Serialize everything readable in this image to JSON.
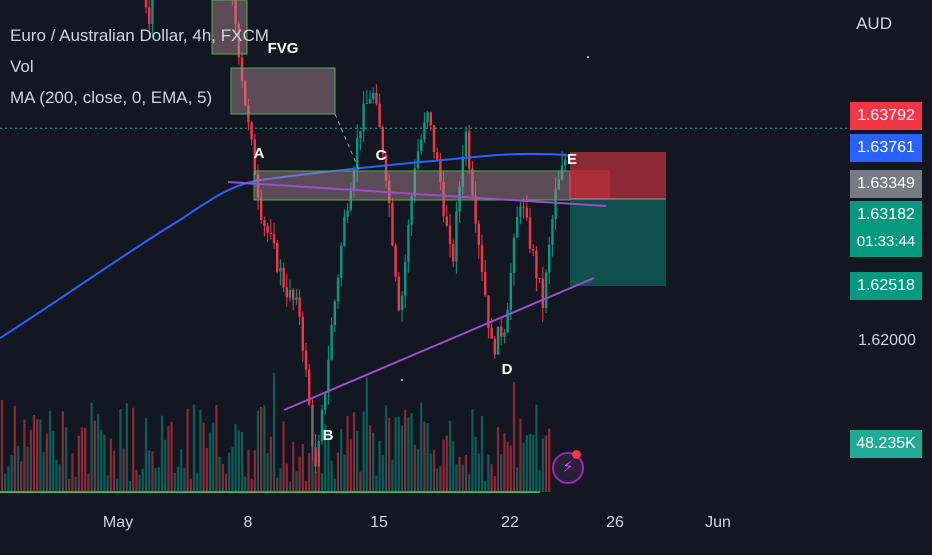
{
  "header": {
    "title": "Euro / Australian Dollar, 4h, FXCM",
    "indicator_vol": "Vol",
    "indicator_ma": "MA (200, close, 0, EMA, 5)",
    "currency": "AUD"
  },
  "price_axis": {
    "ticks": [
      "1.62000"
    ],
    "tags": [
      {
        "label": "1.63792",
        "color": "#f23645"
      },
      {
        "label": "1.63761",
        "color": "#2962ff"
      },
      {
        "label": "1.63349",
        "color": "#787b86"
      },
      {
        "label": "1.63182",
        "sub": "01:33:44",
        "color": "#089981"
      },
      {
        "label": "1.62518",
        "color": "#089981"
      },
      {
        "label": "48.235K",
        "color": "#22ab94"
      }
    ]
  },
  "time_axis": {
    "ticks": [
      "May",
      "8",
      "15",
      "22",
      "26",
      "Jun"
    ]
  },
  "annotations": {
    "fvg": "FVG",
    "points": [
      "A",
      "B",
      "C",
      "D",
      "E"
    ]
  },
  "colors": {
    "background": "#131722",
    "up": "#089981",
    "down": "#f23645",
    "ma": "#2962ff",
    "trendline": "#9c4dcc",
    "zone_border": "#4caf50"
  },
  "chart_data": {
    "type": "candlestick",
    "symbol": "EURAUD",
    "interval": "4h",
    "ylim": [
      1.611,
      1.643
    ],
    "last_price": 1.63182,
    "levels": {
      "stop_loss": 1.63792,
      "ma_value": 1.63761,
      "entry": 1.63349,
      "take_profit": 1.62518
    },
    "volume_last": "48.235K",
    "swing_points": [
      {
        "label": "A",
        "price": 1.6345
      },
      {
        "label": "B",
        "price": 1.6125
      },
      {
        "label": "C",
        "price": 1.634
      },
      {
        "label": "D",
        "price": 1.619
      },
      {
        "label": "E",
        "price": 1.634
      }
    ]
  }
}
